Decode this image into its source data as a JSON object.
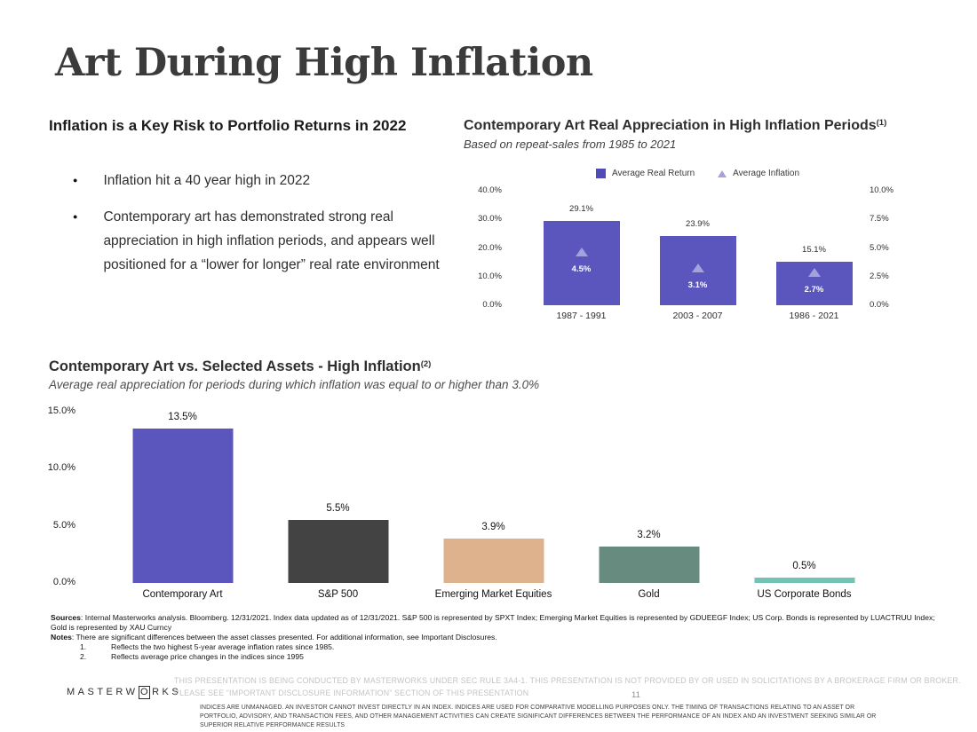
{
  "slide": {
    "title": "Art During High Inflation",
    "page_number": "11"
  },
  "left_panel": {
    "heading": "Inflation is a Key Risk to Portfolio Returns in 2022",
    "bullets": [
      "Inflation hit a 40 year high in 2022",
      "Contemporary art has demonstrated strong real appreciation in high inflation periods, and appears well positioned for a “lower for longer” real rate environment"
    ]
  },
  "top_chart": {
    "title": "Contemporary Art Real Appreciation in High Inflation Periods",
    "footnote_ref": "(1)",
    "subtitle": "Based on repeat-sales from 1985 to 2021"
  },
  "bottom_chart": {
    "title": "Contemporary Art vs. Selected Assets - High Inflation",
    "footnote_ref": "(2)",
    "subtitle": "Average real appreciation for periods during which inflation was equal to or higher than 3.0%"
  },
  "chart_data": [
    {
      "type": "bar",
      "title": "Contemporary Art Real Appreciation in High Inflation Periods",
      "subtitle": "Based on repeat-sales from 1985 to 2021",
      "categories": [
        "1987 - 1991",
        "2003 - 2007",
        "1986 - 2021"
      ],
      "series": [
        {
          "name": "Average Real Return",
          "marker": "square",
          "color": "#5a56bd",
          "axis": "left",
          "values": [
            29.1,
            23.9,
            15.1
          ],
          "labels": [
            "29.1%",
            "23.9%",
            "15.1%"
          ]
        },
        {
          "name": "Average Inflation",
          "marker": "triangle",
          "color": "#a5a1dc",
          "axis": "right",
          "values": [
            4.5,
            3.1,
            2.7
          ],
          "labels": [
            "4.5%",
            "3.1%",
            "2.7%"
          ]
        }
      ],
      "left_axis": {
        "ticks": [
          "40.0%",
          "30.0%",
          "20.0%",
          "10.0%",
          "0.0%"
        ],
        "range": [
          0,
          40
        ]
      },
      "right_axis": {
        "ticks": [
          "10.0%",
          "7.5%",
          "5.0%",
          "2.5%",
          "0.0%"
        ],
        "range": [
          0,
          10
        ]
      },
      "grid": false,
      "legend_position": "top"
    },
    {
      "type": "bar",
      "title": "Contemporary Art vs. Selected Assets - High Inflation",
      "subtitle": "Average real appreciation for periods during which inflation was equal to or higher than 3.0%",
      "categories": [
        "Contemporary Art",
        "S&P 500",
        "Emerging Market Equities",
        "Gold",
        "US Corporate Bonds"
      ],
      "values": [
        13.5,
        5.5,
        3.9,
        3.2,
        0.5
      ],
      "labels": [
        "13.5%",
        "5.5%",
        "3.9%",
        "3.2%",
        "0.5%"
      ],
      "bar_colors": [
        "#5a56bd",
        "#434343",
        "#ddb28c",
        "#688b80",
        "#72c3b3"
      ],
      "yaxis": {
        "ticks": [
          "15.0%",
          "10.0%",
          "5.0%",
          "0.0%"
        ],
        "range": [
          0,
          15
        ]
      },
      "grid": false,
      "legend_position": "none"
    }
  ],
  "footnotes": {
    "sources_label": "Sources",
    "sources_text": ": Internal Masterworks analysis. Bloomberg. 12/31/2021. Index data updated as of 12/31/2021. S&P 500 is represented by SPXT Index; Emerging Market Equities is represented by GDUEEGF Index; US Corp. Bonds is represented by LUACTRUU Index; Gold is represented by XAU Curncy",
    "notes_label": "Notes",
    "notes_text": ": There are significant differences between the asset classes presented. For additional information, see Important Disclosures.",
    "items": [
      {
        "num": "1.",
        "text": "Reflects the two highest 5-year average inflation rates since 1985."
      },
      {
        "num": "2.",
        "text": "Reflects average price changes in the indices since 1995"
      }
    ]
  },
  "footer": {
    "logo_prefix": "MASTERW",
    "logo_o": "O",
    "logo_suffix": "RKS",
    "disclosure_primary": "THIS PRESENTATION  IS BEING CONDUCTED BY MASTERWORKS UNDER SEC RULE 3A4-1. THIS PRESENTATION  IS NOT PROVIDED BY OR USED IN SOLICITATIONS BY A BROKERAGE FIRM OR BROKER. PLEASE SEE “IMPORTANT DISCLOSURE INFORMATION” SECTION OF THIS PRESENTATION",
    "disclosure_secondary": "INDICES ARE UNMANAGED. AN INVESTOR CANNOT INVEST DIRECTLY IN AN INDEX. INDICES ARE USED FOR COMPARATIVE MODELLING PURPOSES ONLY. THE TIMING OF TRANSACTIONS RELATING TO AN ASSET OR PORTFOLIO, ADVISORY, AND TRANSACTION FEES, AND OTHER MANAGEMENT ACTIVITIES CAN CREATE SIGNIFICANT DIFFERENCES BETWEEN THE PERFORMANCE OF AN INDEX AND AN INVESTMENT SEEKING SIMILAR OR SUPERIOR RELATIVE PERFORMANCE RESULTS"
  },
  "colors": {
    "real_return_purple": "#5a56bd",
    "inflation_light_purple": "#a5a1dc",
    "sp500_dark": "#434343",
    "emerging_tan": "#ddb28c",
    "gold_sage": "#688b80",
    "bonds_teal": "#72c3b3"
  }
}
